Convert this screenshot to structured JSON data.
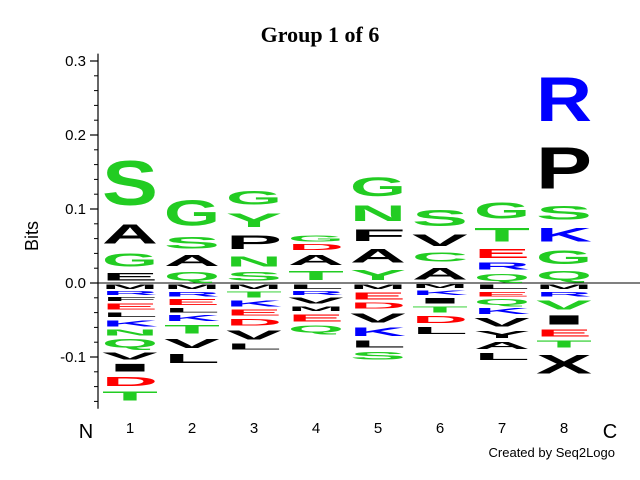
{
  "chart_data": {
    "type": "sequence-logo",
    "title": "Group 1 of 6",
    "ylabel": "Bits",
    "ylim": [
      -0.17,
      0.31
    ],
    "y_ticks": [
      -0.1,
      0.0,
      0.1,
      0.2,
      0.3
    ],
    "y_tick_labels": [
      "-0.1",
      "0.0",
      "0.1",
      "0.2",
      "0.3"
    ],
    "n_label": "N",
    "c_label": "C",
    "colors": {
      "hydrophobic": "#000000",
      "polar": "#22cc22",
      "basic": "#0000ff",
      "acidic": "#ff0000"
    },
    "positions": [
      {
        "position": "1",
        "above": [
          {
            "letter": "E",
            "value": 0.017,
            "color": "#000000"
          },
          {
            "letter": "G",
            "value": 0.028,
            "color": "#22cc22"
          },
          {
            "letter": "A",
            "value": 0.042,
            "color": "#000000"
          },
          {
            "letter": "S",
            "value": 0.095,
            "color": "#22cc22"
          }
        ],
        "below": [
          {
            "letter": "M",
            "value": 0.01,
            "color": "#000000"
          },
          {
            "letter": "R",
            "value": 0.008,
            "color": "#0000ff"
          },
          {
            "letter": "F",
            "value": 0.008,
            "color": "#000000"
          },
          {
            "letter": "E",
            "value": 0.012,
            "color": "#ff0000"
          },
          {
            "letter": "L",
            "value": 0.01,
            "color": "#000000"
          },
          {
            "letter": "K",
            "value": 0.013,
            "color": "#0000ff"
          },
          {
            "letter": "N",
            "value": 0.012,
            "color": "#22cc22"
          },
          {
            "letter": "Q",
            "value": 0.018,
            "color": "#22cc22"
          },
          {
            "letter": "V",
            "value": 0.015,
            "color": "#000000"
          },
          {
            "letter": "I",
            "value": 0.017,
            "color": "#000000"
          },
          {
            "letter": "D",
            "value": 0.02,
            "color": "#ff0000"
          },
          {
            "letter": "T",
            "value": 0.02,
            "color": "#22cc22"
          }
        ]
      },
      {
        "position": "2",
        "above": [
          {
            "letter": "Q",
            "value": 0.018,
            "color": "#22cc22"
          },
          {
            "letter": "A",
            "value": 0.024,
            "color": "#000000"
          },
          {
            "letter": "S",
            "value": 0.025,
            "color": "#22cc22"
          },
          {
            "letter": "G",
            "value": 0.055,
            "color": "#22cc22"
          }
        ],
        "below": [
          {
            "letter": "M",
            "value": 0.01,
            "color": "#000000"
          },
          {
            "letter": "R",
            "value": 0.01,
            "color": "#0000ff"
          },
          {
            "letter": "E",
            "value": 0.012,
            "color": "#ff0000"
          },
          {
            "letter": "L",
            "value": 0.01,
            "color": "#000000"
          },
          {
            "letter": "K",
            "value": 0.012,
            "color": "#0000ff"
          },
          {
            "letter": "T",
            "value": 0.018,
            "color": "#22cc22"
          },
          {
            "letter": "V",
            "value": 0.02,
            "color": "#000000"
          },
          {
            "letter": "L",
            "value": 0.02,
            "color": "#000000"
          }
        ]
      },
      {
        "position": "3",
        "above": [
          {
            "letter": "S",
            "value": 0.018,
            "color": "#22cc22"
          },
          {
            "letter": "N",
            "value": 0.022,
            "color": "#22cc22"
          },
          {
            "letter": "P",
            "value": 0.03,
            "color": "#000000"
          },
          {
            "letter": "Y",
            "value": 0.03,
            "color": "#22cc22"
          },
          {
            "letter": "G",
            "value": 0.03,
            "color": "#22cc22"
          }
        ],
        "below": [
          {
            "letter": "M",
            "value": 0.01,
            "color": "#000000"
          },
          {
            "letter": "T",
            "value": 0.012,
            "color": "#22cc22"
          },
          {
            "letter": "K",
            "value": 0.012,
            "color": "#0000ff"
          },
          {
            "letter": "E",
            "value": 0.012,
            "color": "#ff0000"
          },
          {
            "letter": "D",
            "value": 0.014,
            "color": "#ff0000"
          },
          {
            "letter": "V",
            "value": 0.02,
            "color": "#000000"
          },
          {
            "letter": "L",
            "value": 0.012,
            "color": "#000000"
          }
        ]
      },
      {
        "position": "4",
        "above": [
          {
            "letter": "T",
            "value": 0.02,
            "color": "#22cc22"
          },
          {
            "letter": "A",
            "value": 0.022,
            "color": "#000000"
          },
          {
            "letter": "D",
            "value": 0.012,
            "color": "#ff0000"
          },
          {
            "letter": "G",
            "value": 0.012,
            "color": "#22cc22"
          }
        ],
        "below": [
          {
            "letter": "L",
            "value": 0.01,
            "color": "#000000"
          },
          {
            "letter": "R",
            "value": 0.008,
            "color": "#0000ff"
          },
          {
            "letter": "V",
            "value": 0.012,
            "color": "#000000"
          },
          {
            "letter": "M",
            "value": 0.01,
            "color": "#000000"
          },
          {
            "letter": "E",
            "value": 0.015,
            "color": "#ff0000"
          },
          {
            "letter": "Q",
            "value": 0.015,
            "color": "#22cc22"
          }
        ]
      },
      {
        "position": "5",
        "above": [
          {
            "letter": "Y",
            "value": 0.022,
            "color": "#22cc22"
          },
          {
            "letter": "A",
            "value": 0.03,
            "color": "#000000"
          },
          {
            "letter": "F",
            "value": 0.025,
            "color": "#000000"
          },
          {
            "letter": "N",
            "value": 0.033,
            "color": "#22cc22"
          },
          {
            "letter": "G",
            "value": 0.04,
            "color": "#22cc22"
          }
        ],
        "below": [
          {
            "letter": "M",
            "value": 0.01,
            "color": "#000000"
          },
          {
            "letter": "E",
            "value": 0.015,
            "color": "#ff0000"
          },
          {
            "letter": "D",
            "value": 0.012,
            "color": "#ff0000"
          },
          {
            "letter": "V",
            "value": 0.02,
            "color": "#000000"
          },
          {
            "letter": "K",
            "value": 0.018,
            "color": "#0000ff"
          },
          {
            "letter": "L",
            "value": 0.015,
            "color": "#000000"
          },
          {
            "letter": "S",
            "value": 0.017,
            "color": "#22cc22"
          }
        ]
      },
      {
        "position": "6",
        "above": [
          {
            "letter": "A",
            "value": 0.025,
            "color": "#000000"
          },
          {
            "letter": "C",
            "value": 0.02,
            "color": "#22cc22"
          },
          {
            "letter": "V",
            "value": 0.025,
            "color": "#000000"
          },
          {
            "letter": "S",
            "value": 0.035,
            "color": "#22cc22"
          }
        ],
        "below": [
          {
            "letter": "M",
            "value": 0.008,
            "color": "#000000"
          },
          {
            "letter": "K",
            "value": 0.01,
            "color": "#0000ff"
          },
          {
            "letter": "I",
            "value": 0.012,
            "color": "#000000"
          },
          {
            "letter": "T",
            "value": 0.012,
            "color": "#22cc22"
          },
          {
            "letter": "D",
            "value": 0.015,
            "color": "#ff0000"
          },
          {
            "letter": "L",
            "value": 0.015,
            "color": "#000000"
          }
        ]
      },
      {
        "position": "7",
        "above": [
          {
            "letter": "Q",
            "value": 0.015,
            "color": "#22cc22"
          },
          {
            "letter": "R",
            "value": 0.015,
            "color": "#0000ff"
          },
          {
            "letter": "E",
            "value": 0.02,
            "color": "#ff0000"
          },
          {
            "letter": "T",
            "value": 0.03,
            "color": "#22cc22"
          },
          {
            "letter": "G",
            "value": 0.035,
            "color": "#22cc22"
          }
        ],
        "below": [
          {
            "letter": "L",
            "value": 0.01,
            "color": "#000000"
          },
          {
            "letter": "E",
            "value": 0.01,
            "color": "#ff0000"
          },
          {
            "letter": "Q",
            "value": 0.012,
            "color": "#22cc22"
          },
          {
            "letter": "K",
            "value": 0.012,
            "color": "#0000ff"
          },
          {
            "letter": "V",
            "value": 0.018,
            "color": "#000000"
          },
          {
            "letter": "Y",
            "value": 0.015,
            "color": "#000000"
          },
          {
            "letter": "A",
            "value": 0.015,
            "color": "#000000"
          },
          {
            "letter": "L",
            "value": 0.015,
            "color": "#000000"
          }
        ]
      },
      {
        "position": "8",
        "above": [
          {
            "letter": "Q",
            "value": 0.02,
            "color": "#22cc22"
          },
          {
            "letter": "G",
            "value": 0.03,
            "color": "#22cc22"
          },
          {
            "letter": "K",
            "value": 0.03,
            "color": "#0000ff"
          },
          {
            "letter": "S",
            "value": 0.03,
            "color": "#22cc22"
          },
          {
            "letter": "P",
            "value": 0.09,
            "color": "#000000"
          },
          {
            "letter": "R",
            "value": 0.095,
            "color": "#0000ff"
          }
        ],
        "below": [
          {
            "letter": "M",
            "value": 0.01,
            "color": "#000000"
          },
          {
            "letter": "R",
            "value": 0.01,
            "color": "#0000ff"
          },
          {
            "letter": "V",
            "value": 0.02,
            "color": "#22cc22"
          },
          {
            "letter": "I",
            "value": 0.02,
            "color": "#000000"
          },
          {
            "letter": "E",
            "value": 0.015,
            "color": "#ff0000"
          },
          {
            "letter": "T",
            "value": 0.015,
            "color": "#22cc22"
          },
          {
            "letter": "X",
            "value": 0.04,
            "color": "#000000"
          }
        ]
      }
    ]
  },
  "footer": {
    "credit": "Created by Seq2Logo"
  }
}
